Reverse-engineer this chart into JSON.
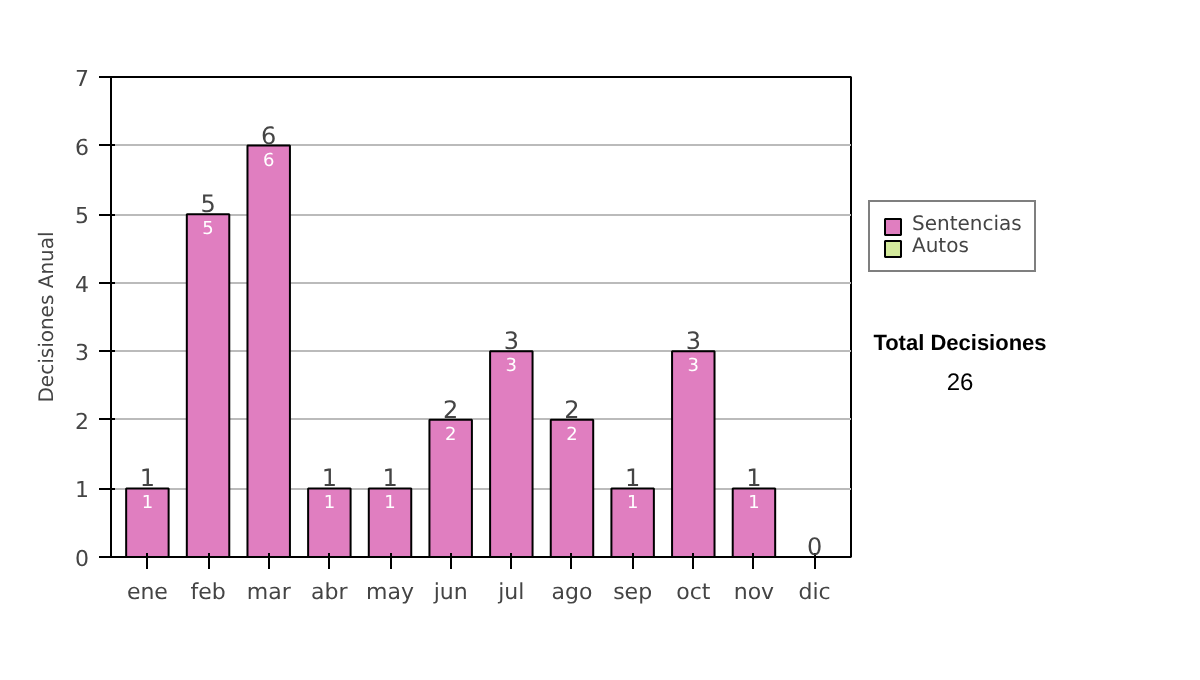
{
  "chart_data": {
    "type": "bar",
    "stacked": true,
    "ylabel": "Decisiones Anual",
    "categories": [
      "ene",
      "feb",
      "mar",
      "abr",
      "may",
      "jun",
      "jul",
      "ago",
      "sep",
      "oct",
      "nov",
      "dic"
    ],
    "series": [
      {
        "name": "Sentencias",
        "color": "#e07ec0",
        "values": [
          1,
          5,
          6,
          1,
          1,
          2,
          3,
          2,
          1,
          3,
          1,
          0
        ],
        "value_labels": [
          "1",
          "5",
          "6",
          "1",
          "1",
          "2",
          "3",
          "2",
          "1",
          "3",
          "1",
          null
        ]
      },
      {
        "name": "Autos",
        "color": "#d4ea9c",
        "values": [
          0,
          0,
          0,
          0,
          0,
          0,
          0,
          0,
          0,
          0,
          0,
          0
        ]
      }
    ],
    "totals": [
      "1",
      "5",
      "6",
      "1",
      "1",
      "2",
      "3",
      "2",
      "1",
      "3",
      "1",
      "0"
    ],
    "ylim": [
      0,
      7
    ],
    "yticks": [
      0,
      1,
      2,
      3,
      4,
      5,
      6,
      7
    ],
    "grid": "y",
    "legend": "right",
    "annotations": [
      "Total Decisiones",
      "26"
    ]
  }
}
